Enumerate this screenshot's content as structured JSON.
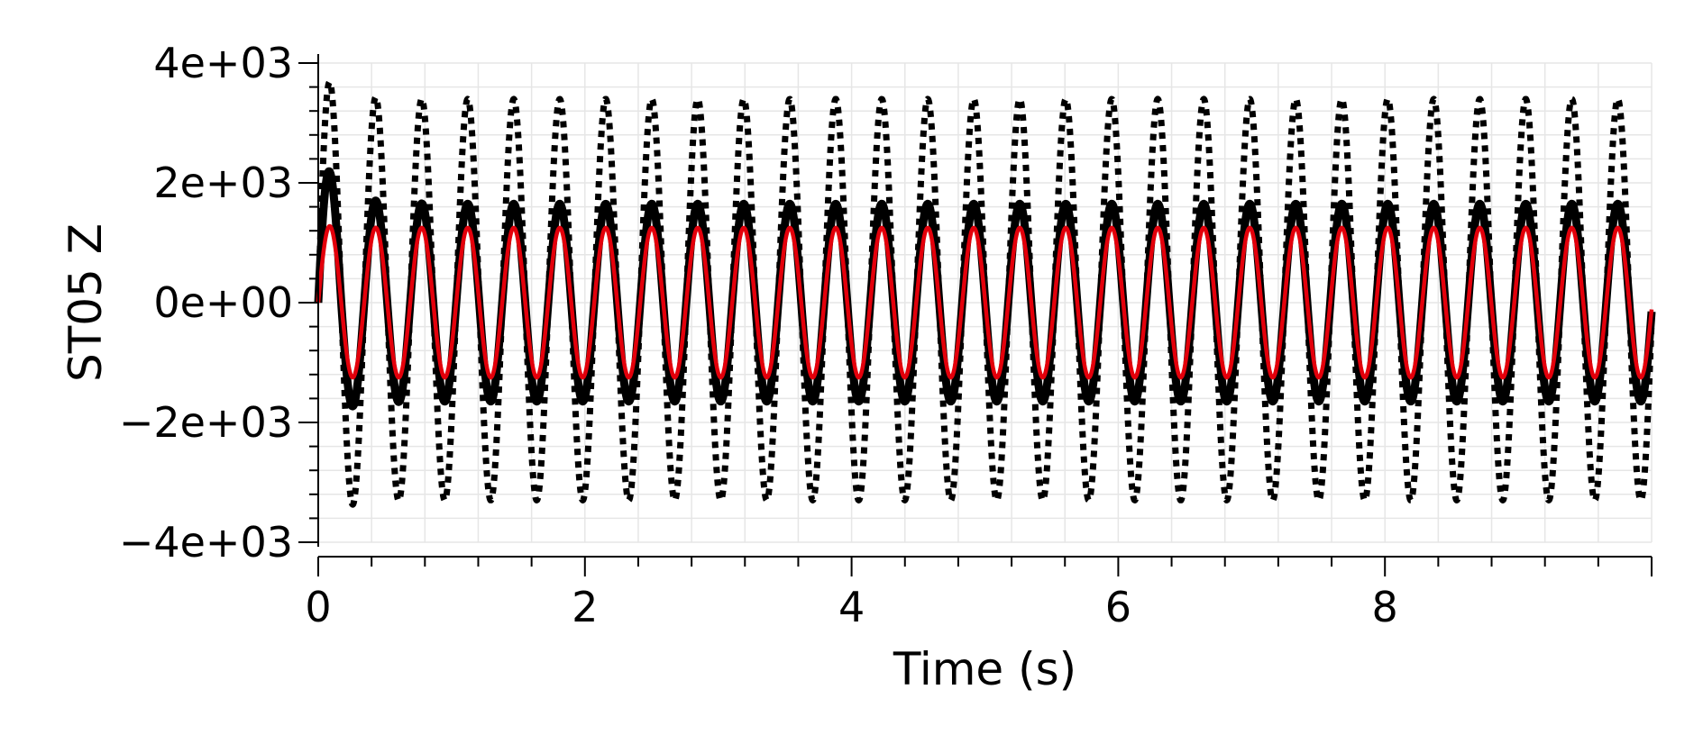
{
  "chart_data": {
    "type": "line",
    "xlabel": "Time (s)",
    "ylabel": "ST05 Z",
    "xlim": [
      0,
      10
    ],
    "ylim": [
      -4000,
      4000
    ],
    "x_ticks": [
      0,
      2,
      4,
      6,
      8
    ],
    "x_tick_labels": [
      "0",
      "2",
      "4",
      "6",
      "8"
    ],
    "y_ticks": [
      4000,
      2000,
      0,
      -2000,
      -4000
    ],
    "y_tick_labels": [
      "4e+03",
      "2e+03",
      "0e+00",
      "−2e+03",
      "−4e+03"
    ],
    "grid": true,
    "legend": "none",
    "signal": {
      "period_s": 0.345,
      "duration_s": 10
    },
    "series": [
      {
        "style": "dotted",
        "color": "#000000",
        "initial_peak": 3900,
        "initial_trough": -3700,
        "steady_max": 3400,
        "steady_min": -3300,
        "offset": 0
      },
      {
        "style": "solid",
        "color": "#000000",
        "initial_peak": 2600,
        "initial_trough": -2100,
        "steady_max": 1650,
        "steady_min": -1650,
        "offset": 0
      },
      {
        "style": "solid",
        "color": "#e3000b",
        "initial_peak": 1300,
        "initial_trough": -1250,
        "steady_max": 1250,
        "steady_min": -1250,
        "offset": 0
      }
    ]
  }
}
